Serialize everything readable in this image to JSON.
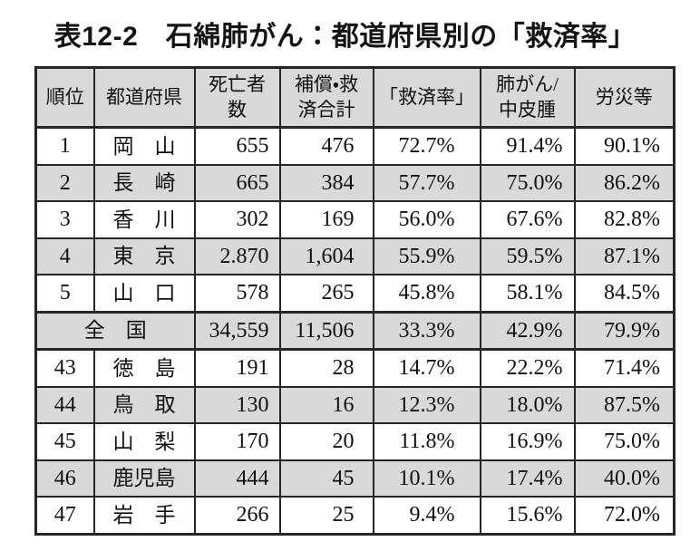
{
  "title": "表12-2　石綿肺がん：都道府県別の「救済率」",
  "table": {
    "columns": [
      {
        "key": "rank",
        "label": "順位"
      },
      {
        "key": "pref",
        "label": "都道府県"
      },
      {
        "key": "deaths",
        "label": "死亡者\n数"
      },
      {
        "key": "total",
        "label": "補償・救\n済合計"
      },
      {
        "key": "rate",
        "label": "「救済率」"
      },
      {
        "key": "lung_meso",
        "label": "肺がん/\n中皮腫"
      },
      {
        "key": "rosai",
        "label": "労災等"
      }
    ],
    "rows": [
      {
        "rank": "1",
        "pref": "岡　山",
        "deaths": "655",
        "total": "476",
        "rate": "72.7%",
        "lung_meso": "91.4%",
        "rosai": "90.1%"
      },
      {
        "rank": "2",
        "pref": "長　崎",
        "deaths": "665",
        "total": "384",
        "rate": "57.7%",
        "lung_meso": "75.0%",
        "rosai": "86.2%"
      },
      {
        "rank": "3",
        "pref": "香　川",
        "deaths": "302",
        "total": "169",
        "rate": "56.0%",
        "lung_meso": "67.6%",
        "rosai": "82.8%"
      },
      {
        "rank": "4",
        "pref": "東　京",
        "deaths": "2.870",
        "total": "1,604",
        "rate": "55.9%",
        "lung_meso": "59.5%",
        "rosai": "87.1%"
      },
      {
        "rank": "5",
        "pref": "山　口",
        "deaths": "578",
        "total": "265",
        "rate": "45.8%",
        "lung_meso": "58.1%",
        "rosai": "84.5%"
      },
      {
        "is_national_total": true,
        "pref": "全　国",
        "deaths": "34,559",
        "total": "11,506",
        "rate": "33.3%",
        "lung_meso": "42.9%",
        "rosai": "79.9%"
      },
      {
        "rank": "43",
        "pref": "徳　島",
        "deaths": "191",
        "total": "28",
        "rate": "14.7%",
        "lung_meso": "22.2%",
        "rosai": "71.4%"
      },
      {
        "rank": "44",
        "pref": "鳥　取",
        "deaths": "130",
        "total": "16",
        "rate": "12.3%",
        "lung_meso": "18.0%",
        "rosai": "87.5%"
      },
      {
        "rank": "45",
        "pref": "山　梨",
        "deaths": "170",
        "total": "20",
        "rate": "11.8%",
        "lung_meso": "16.9%",
        "rosai": "75.0%"
      },
      {
        "rank": "46",
        "pref": "鹿児島",
        "deaths": "444",
        "total": "45",
        "rate": "10.1%",
        "lung_meso": "17.4%",
        "rosai": "40.0%"
      },
      {
        "rank": "47",
        "pref": "岩　手",
        "deaths": "266",
        "total": "25",
        "rate": "9.4%",
        "lung_meso": "15.6%",
        "rosai": "72.0%"
      }
    ]
  },
  "colors": {
    "shaded_row_bg": "#d9d9d9",
    "header_bg": "#d9d9d9",
    "border": "#262626",
    "text": "#111111"
  }
}
